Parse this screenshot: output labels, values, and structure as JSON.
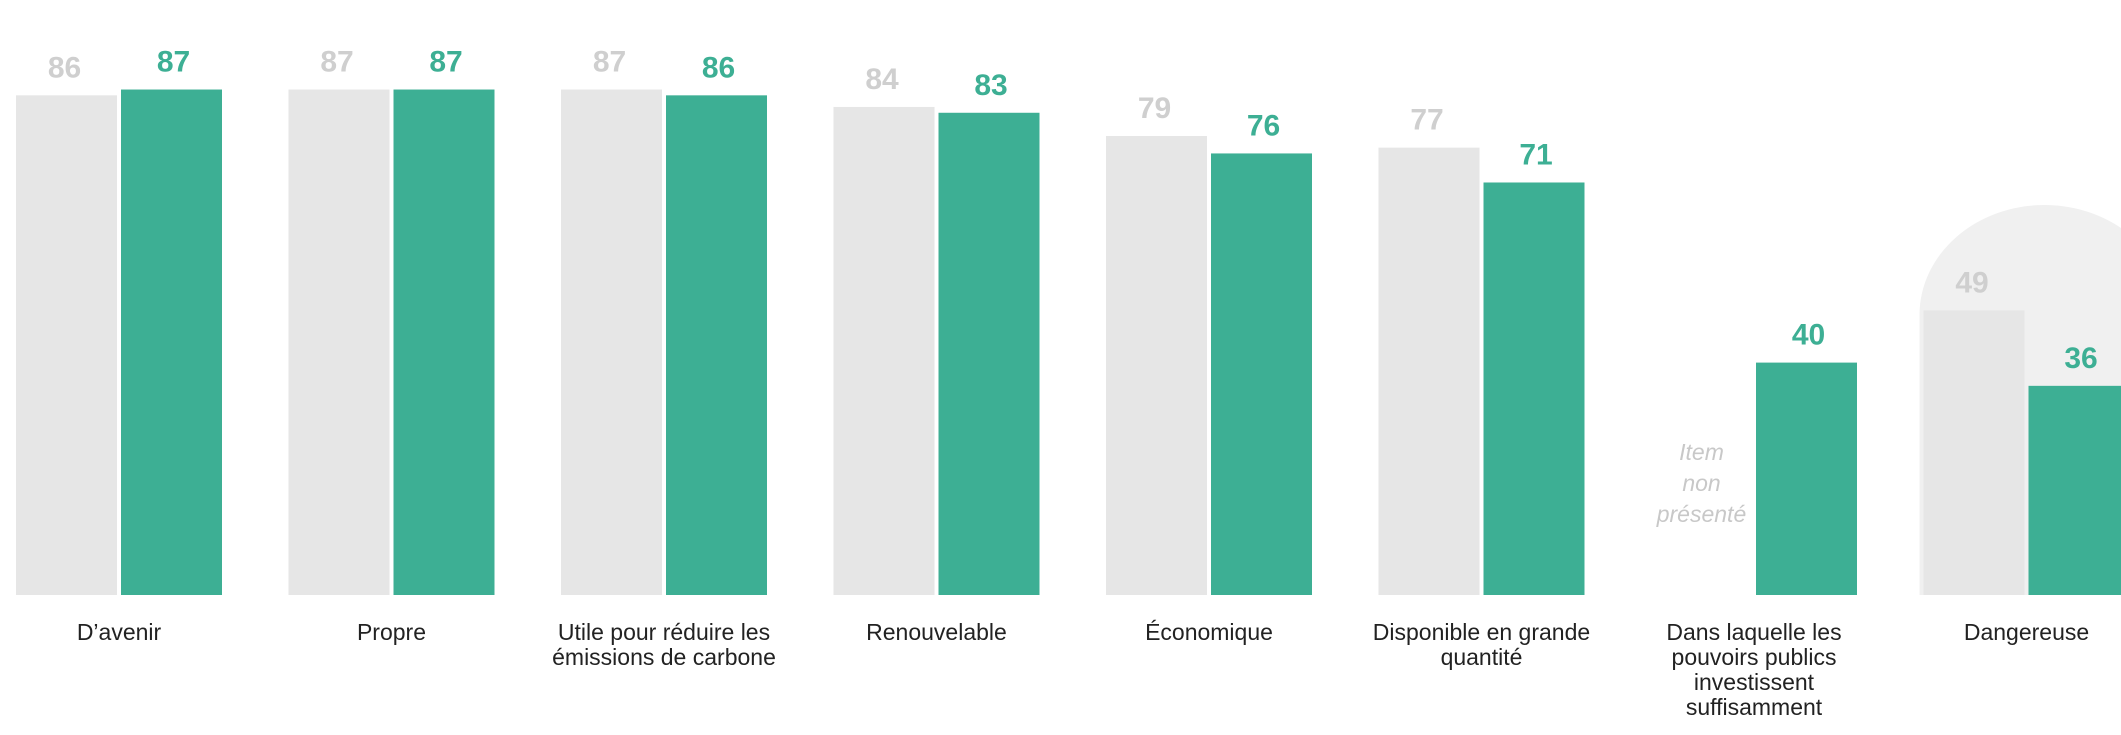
{
  "chart_data": {
    "type": "bar",
    "categories": [
      "D’avenir",
      "Propre",
      "Utile pour réduire les émissions de carbone",
      "Renouvelable",
      "Économique",
      "Disponible en grande quantité",
      "Dans laquelle les pouvoirs publics investissent suffisamment",
      "Dangereuse"
    ],
    "category_lines": [
      [
        "D’avenir"
      ],
      [
        "Propre"
      ],
      [
        "Utile pour réduire les",
        "émissions de carbone"
      ],
      [
        "Renouvelable"
      ],
      [
        "Économique"
      ],
      [
        "Disponible en grande",
        "quantité"
      ],
      [
        "Dans laquelle les",
        "pouvoirs publics",
        "investissent",
        "suffisamment"
      ],
      [
        "Dangereuse"
      ]
    ],
    "series": [
      {
        "values": [
          86,
          87,
          87,
          84,
          79,
          77,
          null,
          49
        ],
        "color": "#e6e6e6",
        "label_color": "#cfcfcf"
      },
      {
        "values": [
          87,
          87,
          86,
          83,
          76,
          71,
          40,
          36
        ],
        "color": "#3daf94",
        "label_color": "#3daf94"
      }
    ],
    "missing_label_lines": [
      "Item",
      "non",
      "présenté"
    ],
    "missing_label_color": "#c8c8c8",
    "highlight_category": "Dangereuse",
    "highlight_color": "#f0f0f0",
    "ylim": [
      0,
      100
    ],
    "grid": false,
    "legend": "none"
  }
}
